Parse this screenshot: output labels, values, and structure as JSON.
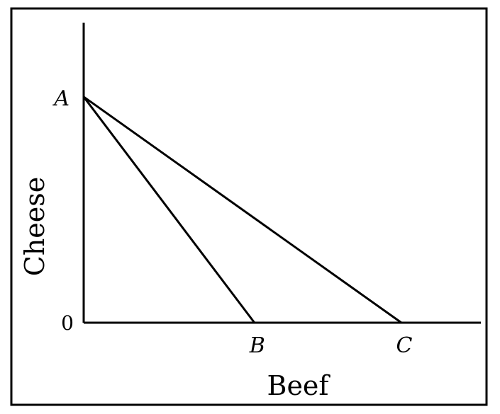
{
  "chart_data": {
    "type": "line",
    "title": "",
    "xlabel": "Beef",
    "ylabel": "Cheese",
    "origin_label": "0",
    "xlim": [
      0,
      1.0
    ],
    "ylim": [
      0,
      1.0
    ],
    "grid": false,
    "legend": "none",
    "points": [
      {
        "label": "A",
        "x": 0,
        "y": 0.76
      },
      {
        "label": "B",
        "x": 0.43,
        "y": 0
      },
      {
        "label": "C",
        "x": 0.8,
        "y": 0
      }
    ],
    "series": [
      {
        "from": "A",
        "to": "B"
      },
      {
        "from": "A",
        "to": "C"
      }
    ],
    "colors": {
      "line": "#000000",
      "frame": "#000000",
      "background": "#ffffff"
    }
  }
}
